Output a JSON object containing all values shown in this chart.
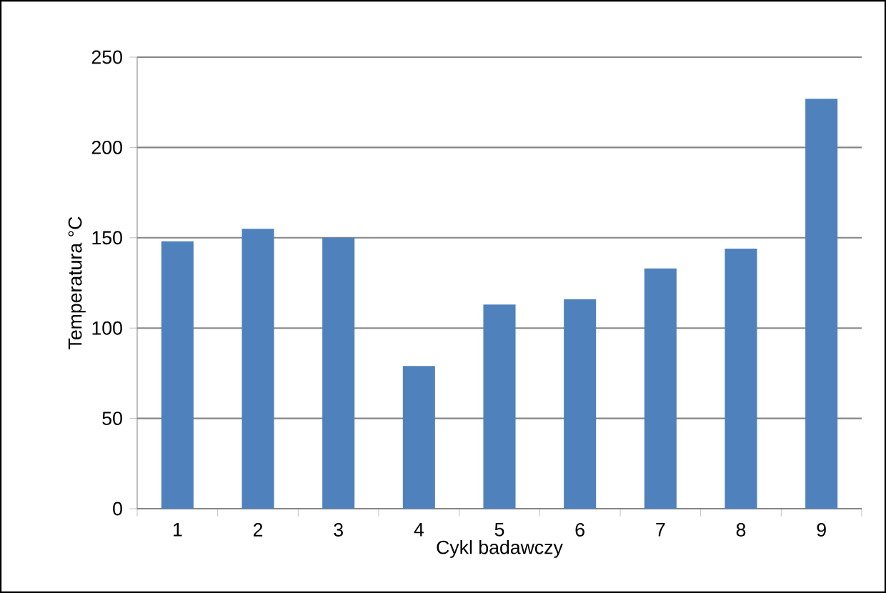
{
  "chart_data": {
    "type": "bar",
    "xlabel": "Cykl badawczy",
    "ylabel": "Temperatura °C",
    "categories": [
      "1",
      "2",
      "3",
      "4",
      "5",
      "6",
      "7",
      "8",
      "9"
    ],
    "values": [
      148,
      155,
      150,
      79,
      113,
      116,
      133,
      144,
      227
    ],
    "color": "#4f81bd",
    "ylim": [
      0,
      250
    ],
    "yticks": [
      0,
      50,
      100,
      150,
      200,
      250
    ],
    "grid": "y"
  }
}
